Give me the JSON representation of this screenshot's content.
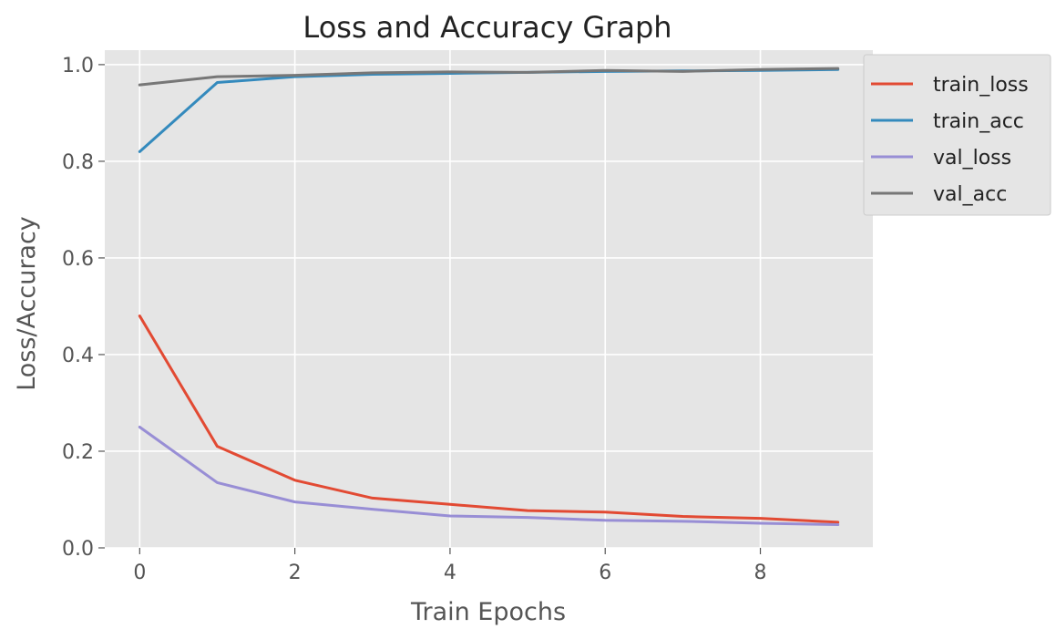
{
  "chart_data": {
    "type": "line",
    "title": "Loss and Accuracy Graph",
    "xlabel": "Train Epochs",
    "ylabel": "Loss/Accuracy",
    "x": [
      0,
      1,
      2,
      3,
      4,
      5,
      6,
      7,
      8,
      9
    ],
    "xlim": [
      -0.45,
      9.45
    ],
    "ylim": [
      0.0,
      1.03
    ],
    "xticks": [
      0,
      2,
      4,
      6,
      8
    ],
    "xtick_labels": [
      "0",
      "2",
      "4",
      "6",
      "8"
    ],
    "yticks": [
      0.0,
      0.2,
      0.4,
      0.6,
      0.8,
      1.0
    ],
    "ytick_labels": [
      "0.0",
      "0.2",
      "0.4",
      "0.6",
      "0.8",
      "1.0"
    ],
    "grid": true,
    "legend_position": "outside upper right",
    "series": [
      {
        "name": "train_loss",
        "color": "#E24A33",
        "values": [
          0.48,
          0.21,
          0.14,
          0.103,
          0.09,
          0.077,
          0.074,
          0.065,
          0.061,
          0.053
        ]
      },
      {
        "name": "train_acc",
        "color": "#348ABD",
        "values": [
          0.82,
          0.963,
          0.975,
          0.98,
          0.982,
          0.984,
          0.986,
          0.987,
          0.988,
          0.99
        ]
      },
      {
        "name": "val_loss",
        "color": "#988ED5",
        "values": [
          0.25,
          0.135,
          0.095,
          0.08,
          0.066,
          0.063,
          0.057,
          0.055,
          0.051,
          0.048
        ]
      },
      {
        "name": "val_acc",
        "color": "#777777",
        "values": [
          0.958,
          0.975,
          0.978,
          0.983,
          0.985,
          0.984,
          0.988,
          0.986,
          0.99,
          0.992
        ]
      }
    ]
  },
  "colors": {
    "plot_background": "#E5E5E5",
    "grid": "#FFFFFF"
  }
}
